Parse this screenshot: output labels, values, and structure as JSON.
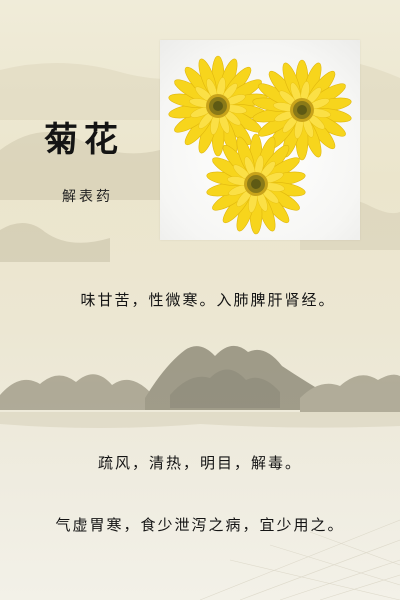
{
  "title": "菊花",
  "subtitle": "解表药",
  "lines": [
    "味甘苦，性微寒。入肺脾肝肾经。",
    "疏风，清热，明目，解毒。",
    "气虚胃寒，食少泄泻之病，宜少用之。"
  ],
  "image": {
    "subject": "yellow-chrysanthemum-flowers",
    "petal_color": "#f7d51c",
    "center_color": "#8a7a18"
  },
  "colors": {
    "background": "#ece7d3",
    "mountain": "#8e8a78",
    "text": "#141414"
  }
}
